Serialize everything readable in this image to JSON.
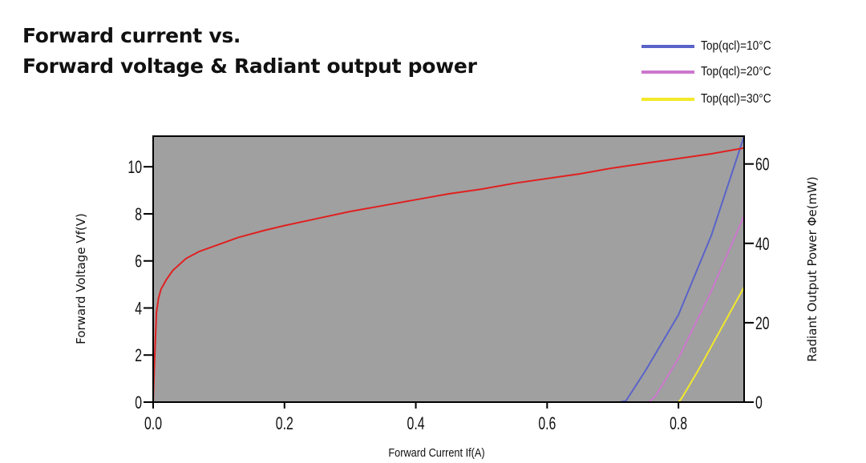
{
  "title_lines": [
    "Forward current vs.",
    "Forward voltage & Radiant output power"
  ],
  "legend": [
    {
      "label": "Top(qcl)=10°C",
      "color": "#5a63c8"
    },
    {
      "label": "Top(qcl)=20°C",
      "color": "#cc77cc"
    },
    {
      "label": "Top(qcl)=30°C",
      "color": "#f2e92a"
    }
  ],
  "chart_data": {
    "type": "line",
    "xlabel": "Forward Current If(A)",
    "ylabel": "Forward Voltage Vf(V)",
    "y2label": "Radiant Output Power Φe(mW)",
    "xlim": [
      0,
      0.9
    ],
    "ylim": [
      0,
      11.3
    ],
    "y2lim": [
      0,
      67
    ],
    "xticks": [
      0.0,
      0.2,
      0.4,
      0.6,
      0.8
    ],
    "xtick_labels": [
      "0.0",
      "0.2",
      "0.4",
      "0.6",
      "0.8"
    ],
    "yticks": [
      0,
      2,
      4,
      6,
      8,
      10
    ],
    "ytick_labels": [
      "0",
      "2",
      "4",
      "6",
      "8",
      "10"
    ],
    "y2ticks": [
      0,
      20,
      40,
      60
    ],
    "y2tick_labels": [
      "0",
      "20",
      "40",
      "60"
    ],
    "plot_background": "#a0a0a0",
    "grid": false,
    "voltage_series": {
      "axis": "left",
      "color": "#e02020",
      "x": [
        0.0,
        0.002,
        0.005,
        0.008,
        0.012,
        0.02,
        0.03,
        0.05,
        0.07,
        0.1,
        0.13,
        0.17,
        0.2,
        0.25,
        0.3,
        0.35,
        0.4,
        0.45,
        0.5,
        0.55,
        0.6,
        0.65,
        0.7,
        0.75,
        0.8,
        0.85,
        0.9
      ],
      "y": [
        0.0,
        1.6,
        3.8,
        4.4,
        4.8,
        5.2,
        5.6,
        6.1,
        6.4,
        6.7,
        7.0,
        7.3,
        7.5,
        7.8,
        8.1,
        8.35,
        8.6,
        8.85,
        9.05,
        9.3,
        9.5,
        9.7,
        9.95,
        10.15,
        10.35,
        10.55,
        10.8
      ]
    },
    "series": [
      {
        "name": "Top(qcl)=10°C",
        "axis": "right",
        "color": "#5a63c8",
        "x": [
          0.0,
          0.71,
          0.72,
          0.75,
          0.8,
          0.85,
          0.9
        ],
        "y": [
          0,
          0,
          0.3,
          8,
          22,
          42,
          67
        ]
      },
      {
        "name": "Top(qcl)=20°C",
        "axis": "right",
        "color": "#cc77cc",
        "x": [
          0.0,
          0.755,
          0.765,
          0.8,
          0.85,
          0.9
        ],
        "y": [
          0,
          0,
          1.5,
          11,
          28,
          47
        ]
      },
      {
        "name": "Top(qcl)=30°C",
        "axis": "right",
        "color": "#f2e92a",
        "x": [
          0.0,
          0.8,
          0.805,
          0.83,
          0.86,
          0.9
        ],
        "y": [
          0,
          0,
          1,
          8,
          17,
          29
        ]
      }
    ]
  }
}
